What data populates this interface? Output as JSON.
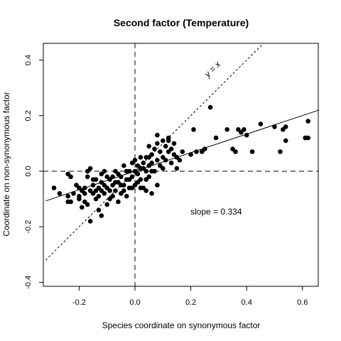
{
  "chart_data": {
    "type": "scatter",
    "title": "Second factor (Temperature)",
    "xlabel": "Species coordinate on synonymous factor",
    "ylabel": "Coordinate on non-synonymous factor",
    "xlim": [
      -0.32,
      0.66
    ],
    "ylim": [
      -0.41,
      0.46
    ],
    "xticks": [
      -0.2,
      0.0,
      0.2,
      0.4,
      0.6
    ],
    "yticks": [
      -0.4,
      -0.2,
      0.0,
      0.2,
      0.4
    ],
    "xtick_labels": [
      "-0.2",
      "0.0",
      "0.2",
      "0.4",
      "0.6"
    ],
    "ytick_labels": [
      "-0.4",
      "-0.2",
      "0.0",
      "0.2",
      "0.4"
    ],
    "grid": false,
    "legend": "none",
    "identity_line_label": "y = x",
    "regression": {
      "slope": 0.334,
      "intercept": 0.0
    },
    "slope_label": "slope =  0.334",
    "reference_lines": {
      "vertical_x": 0.0,
      "horizontal_y": 0.0
    },
    "points": [
      [
        -0.29,
        -0.06
      ],
      [
        -0.27,
        -0.08
      ],
      [
        -0.24,
        -0.01
      ],
      [
        -0.23,
        -0.02
      ],
      [
        -0.24,
        -0.09
      ],
      [
        -0.24,
        -0.11
      ],
      [
        -0.23,
        -0.11
      ],
      [
        -0.22,
        -0.08
      ],
      [
        -0.21,
        -0.05
      ],
      [
        -0.2,
        -0.09
      ],
      [
        -0.19,
        -0.13
      ],
      [
        -0.18,
        -0.11
      ],
      [
        -0.17,
        -0.12
      ],
      [
        -0.18,
        -0.06
      ],
      [
        -0.17,
        -0.02
      ],
      [
        -0.17,
        0.0
      ],
      [
        -0.16,
        0.01
      ],
      [
        -0.15,
        -0.03
      ],
      [
        -0.15,
        -0.08
      ],
      [
        -0.14,
        -0.1
      ],
      [
        -0.13,
        -0.14
      ],
      [
        -0.12,
        -0.16
      ],
      [
        -0.16,
        -0.18
      ],
      [
        -0.15,
        -0.05
      ],
      [
        -0.14,
        -0.03
      ],
      [
        -0.13,
        -0.06
      ],
      [
        -0.13,
        -0.09
      ],
      [
        -0.12,
        -0.04
      ],
      [
        -0.12,
        -0.01
      ],
      [
        -0.11,
        0.0
      ],
      [
        -0.11,
        -0.08
      ],
      [
        -0.1,
        -0.12
      ],
      [
        -0.1,
        -0.06
      ],
      [
        -0.09,
        -0.03
      ],
      [
        -0.09,
        -0.1
      ],
      [
        -0.08,
        -0.05
      ],
      [
        -0.08,
        -0.02
      ],
      [
        -0.07,
        0.0
      ],
      [
        -0.07,
        -0.07
      ],
      [
        -0.06,
        -0.04
      ],
      [
        -0.06,
        -0.11
      ],
      [
        -0.05,
        -0.02
      ],
      [
        -0.05,
        -0.08
      ],
      [
        -0.04,
        0.02
      ],
      [
        -0.04,
        -0.05
      ],
      [
        -0.03,
        -0.03
      ],
      [
        -0.03,
        -0.09
      ],
      [
        -0.02,
        0.0
      ],
      [
        -0.02,
        -0.06
      ],
      [
        -0.01,
        0.03
      ],
      [
        -0.01,
        -0.02
      ],
      [
        0.0,
        -0.05
      ],
      [
        0.0,
        0.0
      ],
      [
        0.0,
        0.04
      ],
      [
        0.01,
        -0.01
      ],
      [
        0.01,
        0.02
      ],
      [
        0.02,
        -0.03
      ],
      [
        0.02,
        0.01
      ],
      [
        0.03,
        0.03
      ],
      [
        0.03,
        -0.06
      ],
      [
        0.04,
        0.0
      ],
      [
        0.04,
        0.05
      ],
      [
        0.05,
        0.02
      ],
      [
        0.05,
        -0.02
      ],
      [
        0.06,
        0.06
      ],
      [
        0.06,
        0.03
      ],
      [
        0.07,
        0.08
      ],
      [
        0.07,
        0.0
      ],
      [
        0.08,
        0.04
      ],
      [
        0.08,
        0.1
      ],
      [
        0.09,
        0.02
      ],
      [
        0.09,
        0.07
      ],
      [
        0.1,
        0.05
      ],
      [
        0.1,
        0.01
      ],
      [
        0.11,
        0.09
      ],
      [
        0.11,
        0.04
      ],
      [
        0.12,
        0.07
      ],
      [
        0.12,
        0.11
      ],
      [
        0.13,
        0.03
      ],
      [
        0.13,
        0.08
      ],
      [
        0.14,
        0.06
      ],
      [
        0.14,
        0.1
      ],
      [
        0.15,
        0.05
      ],
      [
        0.15,
        0.01
      ],
      [
        0.16,
        0.04
      ],
      [
        0.17,
        0.07
      ],
      [
        0.05,
        0.09
      ],
      [
        0.08,
        0.13
      ],
      [
        0.1,
        0.11
      ],
      [
        0.12,
        0.12
      ],
      [
        -0.12,
        -0.07
      ],
      [
        -0.11,
        -0.05
      ],
      [
        -0.1,
        -0.02
      ],
      [
        -0.09,
        -0.07
      ],
      [
        -0.08,
        -0.09
      ],
      [
        -0.07,
        -0.04
      ],
      [
        -0.06,
        -0.01
      ],
      [
        -0.05,
        -0.05
      ],
      [
        -0.04,
        -0.07
      ],
      [
        -0.03,
        0.0
      ],
      [
        -0.02,
        -0.03
      ],
      [
        -0.01,
        -0.06
      ],
      [
        0.01,
        -0.04
      ],
      [
        0.02,
        0.05
      ],
      [
        0.03,
        0.01
      ],
      [
        0.04,
        -0.03
      ],
      [
        0.05,
        0.05
      ],
      [
        0.06,
        0.0
      ],
      [
        0.02,
        -0.06
      ],
      [
        0.04,
        -0.07
      ],
      [
        0.06,
        -0.08
      ],
      [
        0.08,
        -0.05
      ],
      [
        -0.16,
        -0.07
      ],
      [
        -0.14,
        -0.07
      ],
      [
        -0.18,
        -0.08
      ],
      [
        -0.2,
        -0.06
      ],
      [
        -0.19,
        -0.07
      ],
      [
        -0.2,
        -0.1
      ],
      [
        0.2,
        0.06
      ],
      [
        0.21,
        0.15
      ],
      [
        0.22,
        0.07
      ],
      [
        0.24,
        0.07
      ],
      [
        0.25,
        0.08
      ],
      [
        0.27,
        0.23
      ],
      [
        0.29,
        0.12
      ],
      [
        0.33,
        0.15
      ],
      [
        0.35,
        0.08
      ],
      [
        0.36,
        0.07
      ],
      [
        0.37,
        0.15
      ],
      [
        0.38,
        0.14
      ],
      [
        0.39,
        0.15
      ],
      [
        0.4,
        0.13
      ],
      [
        0.42,
        0.07
      ],
      [
        0.45,
        0.17
      ],
      [
        0.5,
        0.16
      ],
      [
        0.52,
        0.07
      ],
      [
        0.53,
        0.15
      ],
      [
        0.54,
        0.11
      ],
      [
        0.54,
        0.16
      ],
      [
        0.61,
        0.12
      ],
      [
        0.62,
        0.12
      ],
      [
        0.62,
        0.18
      ]
    ]
  }
}
